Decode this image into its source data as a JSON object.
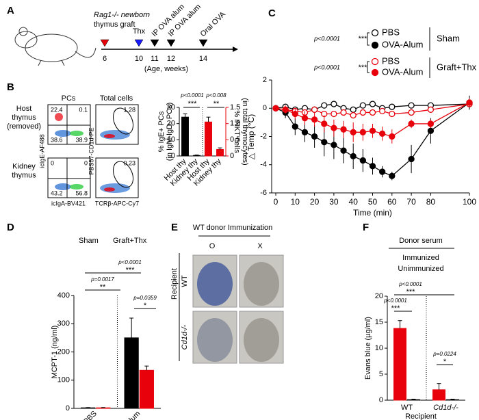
{
  "panel_a": {
    "label": "A",
    "graft": [
      "Rag1-/- newborn",
      "thymus graft"
    ],
    "events": [
      "Thx",
      "IP OVA alum",
      "IP OVA alum",
      "Oral OVA"
    ],
    "weeks": [
      6,
      10,
      11,
      12,
      14
    ],
    "axis_note": "(Age, weeks)"
  },
  "panel_b": {
    "label": "B",
    "columns": [
      "PCs",
      "Total cells"
    ],
    "rows": [
      [
        "Host",
        "thymus",
        "(removed)"
      ],
      [
        "Kidney",
        "thymus"
      ]
    ],
    "pc_quadrants": [
      [
        22.4,
        0.1,
        38.6,
        38.9
      ],
      [
        0,
        0,
        43.2,
        56.8
      ]
    ],
    "total_gates": [
      1.28,
      0.23
    ],
    "x_labels": [
      "icIgA-BV421",
      "TCRβ-APC-Cy7"
    ],
    "y_labels": [
      "icIgE-AF488",
      "PBS57-CD1d-PE"
    ]
  },
  "panel_e": {
    "label": "E",
    "title": "WT donor Immunization",
    "columns": [
      "O",
      "X"
    ],
    "axis": "Recipient",
    "rows": [
      "WT",
      "Cd1d-/-"
    ]
  },
  "chart_data": [
    {
      "type": "bar",
      "categories": [
        "Host thy",
        "Kidney thy",
        "Host thy",
        "Kidney thy"
      ],
      "series": [
        {
          "color": "#000000",
          "axis": "y",
          "values": [
            24,
            0.3,
            null,
            null
          ],
          "errors": [
            2,
            0.3,
            null,
            null
          ]
        },
        {
          "color": "#e8000b",
          "axis": "y2",
          "values": [
            null,
            null,
            1.05,
            0.2
          ],
          "errors": [
            null,
            null,
            0.15,
            0.05
          ]
        }
      ],
      "ylabel": [
        "% IgE+ PCs",
        "(in IgM-IgD- PCs)"
      ],
      "y2label": [
        "% iNKT cells",
        "(in total thymocytes)"
      ],
      "y2_color": "#e8000b",
      "ylim": [
        0,
        30
      ],
      "yticks": [
        0,
        10,
        20,
        30
      ],
      "y2lim": [
        0,
        1.5
      ],
      "y2ticks": [
        0,
        0.5,
        {
          "value": 1,
          "label": "1.0"
        },
        1.5
      ],
      "annotations": [
        "p<0.0001",
        "***",
        "p<0.008",
        "**"
      ]
    },
    {
      "type": "line",
      "panel": "C",
      "x": [
        0,
        5,
        10,
        15,
        20,
        25,
        30,
        35,
        40,
        45,
        50,
        55,
        60,
        70,
        80,
        100
      ],
      "series": [
        {
          "name": "PBS",
          "color": "#000000",
          "open": true,
          "values": [
            0,
            0.1,
            -0.1,
            0,
            -0.1,
            0.2,
            0.3,
            0,
            -0.1,
            0.2,
            0.3,
            0,
            0.1,
            0.2,
            0.2,
            0.3
          ]
        },
        {
          "name": "OVA-Alum",
          "color": "#000000",
          "values": [
            0,
            -0.3,
            -1.3,
            -1.7,
            -2.0,
            -2.4,
            -2.6,
            -3.0,
            -3.4,
            -3.7,
            -4.1,
            -4.5,
            -4.8,
            -3.6,
            -1.6,
            0.4
          ],
          "errors": [
            0.2,
            0.4,
            0.6,
            0.7,
            0.8,
            1.0,
            1.0,
            0.9,
            0.9,
            0.8,
            0.6,
            0.4,
            0.3,
            1.0,
            0.9,
            0.5
          ]
        },
        {
          "name": "PBS",
          "color": "#e8000b",
          "open": true,
          "values": [
            0,
            -0.1,
            -0.2,
            -0.3,
            -0.1,
            -0.4,
            -0.4,
            -0.3,
            -0.5,
            -0.3,
            -0.3,
            -0.2,
            -0.4,
            -0.3,
            -0.1,
            0.3
          ]
        },
        {
          "name": "OVA-Alum",
          "color": "#e8000b",
          "values": [
            0,
            -0.1,
            -0.4,
            -0.7,
            -0.8,
            -1.1,
            -1.4,
            -1.5,
            -1.7,
            -1.7,
            -1.6,
            -1.8,
            -2.0,
            -1.1,
            -1.1,
            0.4
          ],
          "errors": [
            0.2,
            0.3,
            0.4,
            0.5,
            0.5,
            0.6,
            0.6,
            0.6,
            0.7,
            0.6,
            0.5,
            0.5,
            0.5,
            0.3,
            0.3,
            0.3
          ]
        }
      ],
      "legend_groups": [
        "Sham",
        "Graft+Thx"
      ],
      "annotations": [
        "p<0.0001",
        "***",
        "p<0.0001",
        "***"
      ],
      "xlabel": "Time (min)",
      "ylabel": "△ Temp (°C)",
      "xlim": [
        0,
        100
      ],
      "xticks": [
        0,
        10,
        20,
        30,
        40,
        50,
        60,
        70,
        80,
        100
      ],
      "ylim": [
        -6,
        2
      ],
      "yticks": [
        -6,
        -4,
        -2,
        0,
        2
      ]
    },
    {
      "type": "bar",
      "panel": "D",
      "categories": [
        "PBS",
        "OVA-Alum"
      ],
      "series": [
        {
          "name": "Sham",
          "color": "#000000",
          "axis": "y",
          "values": [
            2,
            250
          ],
          "errors": [
            1,
            70
          ]
        },
        {
          "name": "Graft+Thx",
          "color": "#e8000b",
          "axis": "y",
          "values": [
            2,
            135
          ],
          "errors": [
            1,
            15
          ]
        }
      ],
      "ylabel": [
        "MCPT-1 (ng/ml)"
      ],
      "ylim": [
        0,
        400
      ],
      "yticks": [
        0,
        100,
        200,
        300,
        400
      ],
      "annotations": [
        "p<0.0001",
        "***",
        "p=0.0017",
        "**",
        "p=0.0359",
        "*"
      ]
    },
    {
      "type": "bar",
      "panel": "F",
      "categories": [
        "WT",
        "Cd1d-/-"
      ],
      "series": [
        {
          "name": "Immunized",
          "color": "#e8000b",
          "axis": "y",
          "values": [
            13.8,
            2.0
          ],
          "errors": [
            1.5,
            1.2
          ]
        },
        {
          "name": "Unimmunized",
          "color": "#ffffff",
          "axis": "y",
          "values": [
            0.1,
            0.1
          ],
          "errors": [
            0.1,
            0.1
          ]
        }
      ],
      "legend_title": "Donor serum",
      "xlabel": "Recipient",
      "ylabel": [
        "Evans blue (µg/ml)"
      ],
      "ylim": [
        0,
        20
      ],
      "yticks": [
        0,
        5,
        10,
        15,
        20
      ],
      "annotations": [
        "p<0.0001",
        "***",
        "p<0.0001",
        "***",
        "p=0.0224",
        "*"
      ]
    }
  ]
}
